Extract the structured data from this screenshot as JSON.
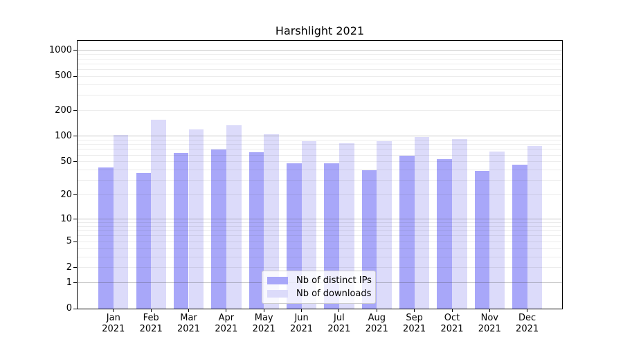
{
  "chart_data": {
    "type": "bar",
    "title": "Harshlight 2021",
    "categories": [
      "Jan 2021",
      "Feb 2021",
      "Mar 2021",
      "Apr 2021",
      "May 2021",
      "Jun 2021",
      "Jul 2021",
      "Aug 2021",
      "Sep 2021",
      "Oct 2021",
      "Nov 2021",
      "Dec 2021"
    ],
    "series": [
      {
        "name": "Nb of distinct IPs",
        "color": "#a8a7f9",
        "values": [
          43,
          37,
          63,
          70,
          65,
          48,
          48,
          40,
          59,
          54,
          39,
          46
        ]
      },
      {
        "name": "Nb of downloads",
        "color": "#dcdbfa",
        "values": [
          104,
          155,
          121,
          134,
          106,
          88,
          82,
          88,
          97,
          92,
          66,
          77
        ]
      }
    ],
    "xlabel": "",
    "ylabel": "",
    "yscale": "log1p",
    "yticks": [
      0,
      1,
      2,
      5,
      10,
      20,
      50,
      100,
      200,
      500,
      1000
    ],
    "ylim": [
      0,
      1300
    ],
    "grid": {
      "orientation": "horizontal",
      "major_lines_at": [
        1,
        10,
        100,
        1000
      ],
      "minor_lines": "2-9 within each decade",
      "drawn_over_bars": true
    },
    "legend": {
      "position": "lower center inside plot",
      "entries": [
        "Nb of distinct IPs",
        "Nb of downloads"
      ]
    }
  }
}
